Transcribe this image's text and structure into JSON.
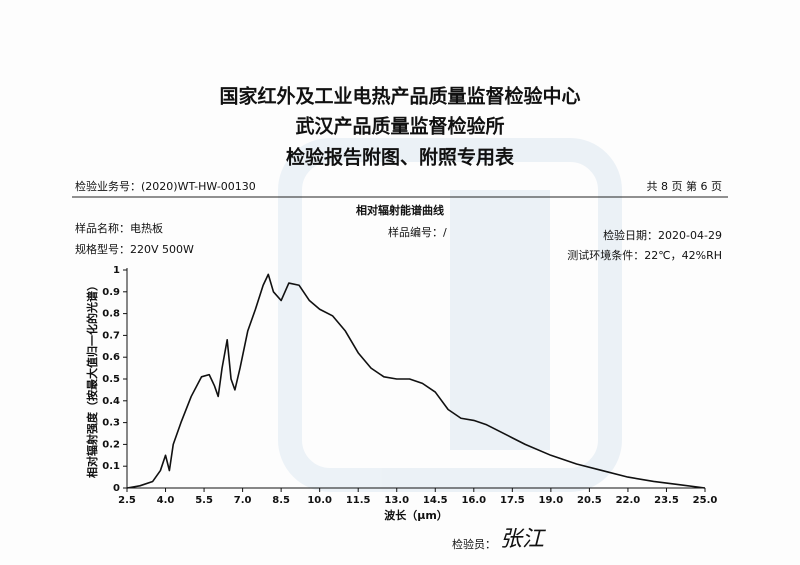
{
  "header": {
    "titles": [
      "国家红外及工业电热产品质量监督检验中心",
      "武汉产品质量监督检验所",
      "检验报告附图、附照专用表"
    ],
    "report_no": "检验业务号：(2020)WT-HW-00130",
    "pages": "共 8 页 第 6 页"
  },
  "info": {
    "sample_name": "样品名称：电热板",
    "sample_no": "样品编号：/",
    "test_date": "检验日期：2020-04-29",
    "model": "规格型号：220V  500W",
    "environment": "测试环境条件：22℃，42%RH"
  },
  "chart_data": {
    "type": "line",
    "title": "相对辐射能谱曲线",
    "x_label": "波长（μm）",
    "y_label": "相对辐射强度（按最大值归一化的光谱）",
    "x": [
      2.5,
      3.0,
      3.5,
      3.8,
      4.0,
      4.15,
      4.3,
      4.6,
      5.0,
      5.4,
      5.7,
      5.9,
      6.05,
      6.2,
      6.4,
      6.55,
      6.7,
      6.9,
      7.2,
      7.5,
      7.8,
      8.0,
      8.2,
      8.5,
      8.8,
      9.2,
      9.6,
      10.0,
      10.5,
      11.0,
      11.5,
      12.0,
      12.5,
      13.0,
      13.5,
      14.0,
      14.5,
      15.0,
      15.5,
      16.0,
      16.5,
      17.0,
      17.5,
      18.0,
      19.0,
      20.0,
      21.0,
      22.0,
      23.0,
      24.0,
      25.0
    ],
    "series": [
      {
        "name": "相对辐射强度",
        "color": "#111111",
        "values": [
          0,
          0.01,
          0.03,
          0.08,
          0.15,
          0.08,
          0.2,
          0.3,
          0.42,
          0.51,
          0.52,
          0.47,
          0.42,
          0.55,
          0.68,
          0.5,
          0.45,
          0.55,
          0.72,
          0.82,
          0.93,
          0.98,
          0.9,
          0.86,
          0.94,
          0.93,
          0.86,
          0.82,
          0.79,
          0.72,
          0.62,
          0.55,
          0.51,
          0.5,
          0.5,
          0.48,
          0.44,
          0.36,
          0.32,
          0.31,
          0.29,
          0.26,
          0.23,
          0.2,
          0.15,
          0.11,
          0.08,
          0.05,
          0.03,
          0.015,
          0
        ]
      }
    ],
    "xlim": [
      2.5,
      25.0
    ],
    "xticks": [
      2.5,
      {
        "value": 4,
        "label": "4.0"
      },
      5.5,
      {
        "value": 7,
        "label": "7.0"
      },
      8.5,
      {
        "value": 10,
        "label": "10.0"
      },
      11.5,
      {
        "value": 13,
        "label": "13.0"
      },
      14.5,
      {
        "value": 16,
        "label": "16.0"
      },
      17.5,
      {
        "value": 19,
        "label": "19.0"
      },
      20.5,
      {
        "value": 22,
        "label": "22.0"
      },
      23.5,
      {
        "value": 25,
        "label": "25.0"
      }
    ],
    "ylim": [
      0,
      1
    ],
    "yticks": [
      0,
      0.1,
      0.2,
      0.3,
      0.4,
      0.5,
      0.6,
      0.7,
      0.8,
      0.9,
      1
    ],
    "grid": false
  },
  "footer": {
    "inspector": "检验员：",
    "signature": "张江"
  }
}
